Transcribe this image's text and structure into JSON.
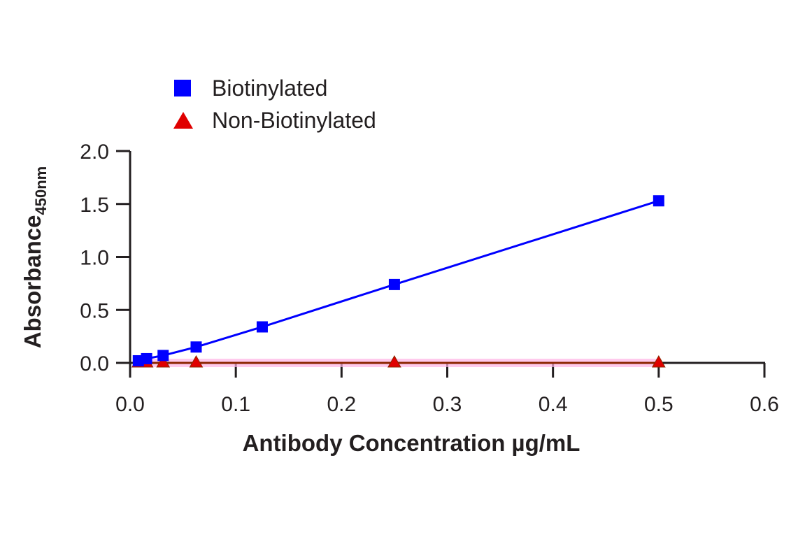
{
  "chart_data": {
    "type": "line",
    "title": "",
    "xlabel": "Antibody Concentration µg/mL",
    "ylabel": "Absorbance",
    "ylabel_subscript": "450nm",
    "xlim": [
      0,
      0.6
    ],
    "ylim": [
      0,
      2.0
    ],
    "xticks": [
      "0.0",
      "0.1",
      "0.2",
      "0.3",
      "0.4",
      "0.5",
      "0.6"
    ],
    "yticks": [
      "0.0",
      "0.5",
      "1.0",
      "1.5",
      "2.0"
    ],
    "grid": false,
    "legend_position": "top-left",
    "series": [
      {
        "name": "Biotinylated",
        "color": "#0000ff",
        "marker": "square",
        "x": [
          0.0078,
          0.0156,
          0.03125,
          0.0625,
          0.125,
          0.25,
          0.5
        ],
        "y": [
          0.02,
          0.04,
          0.07,
          0.15,
          0.34,
          0.74,
          1.53
        ]
      },
      {
        "name": "Non-Biotinylated",
        "color": "#e00000",
        "line_color": "#8b2500",
        "marker": "triangle",
        "x": [
          0.0078,
          0.0156,
          0.03125,
          0.0625,
          0.25,
          0.5
        ],
        "y": [
          0.0,
          0.0,
          0.0,
          0.0,
          0.0,
          0.0
        ]
      }
    ]
  }
}
